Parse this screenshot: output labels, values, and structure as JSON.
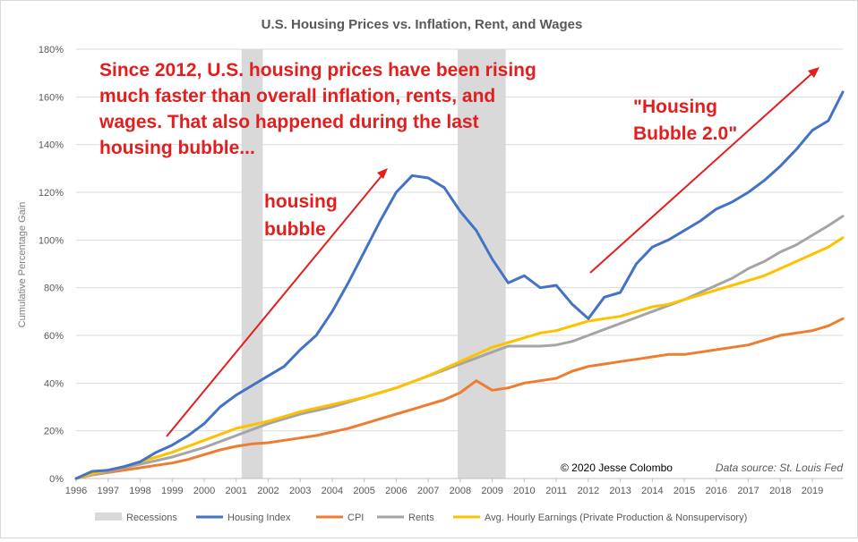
{
  "chart_data": {
    "type": "line",
    "title": "U.S. Housing Prices vs. Inflation, Rent, and Wages",
    "ylabel": "Cumulative Percentage Gain",
    "xlabel": "",
    "xlim": [
      1996,
      2019.95
    ],
    "ylim": [
      0,
      180
    ],
    "y_ticks": [
      "0%",
      "20%",
      "40%",
      "60%",
      "80%",
      "100%",
      "120%",
      "140%",
      "160%",
      "180%"
    ],
    "x_ticks": [
      "1996",
      "1997",
      "1998",
      "1999",
      "2000",
      "2001",
      "2002",
      "2003",
      "2004",
      "2005",
      "2006",
      "2007",
      "2008",
      "2009",
      "2010",
      "2011",
      "2012",
      "2013",
      "2014",
      "2015",
      "2016",
      "2017",
      "2018",
      "2019"
    ],
    "grid": "horizontal",
    "legend_position": "bottom",
    "recessions": [
      [
        2001.17,
        2001.83
      ],
      [
        2007.92,
        2009.42
      ]
    ],
    "legend": {
      "recessions": "Recessions",
      "housing": "Housing Index",
      "cpi": "CPI",
      "rents": "Rents",
      "wages": "Avg. Hourly Earnings (Private Production & Nonsupervisory)"
    },
    "colors": {
      "housing": "#4472c4",
      "cpi": "#ed7d31",
      "rents": "#a5a5a5",
      "wages": "#ffc000",
      "recession": "#d9d9d9",
      "annotation": "#e31e1e"
    },
    "series": [
      {
        "name": "Housing Index",
        "key": "housing",
        "x": [
          1996,
          1996.5,
          1997,
          1997.5,
          1998,
          1998.5,
          1999,
          1999.5,
          2000,
          2000.5,
          2001,
          2001.5,
          2002,
          2002.5,
          2003,
          2003.5,
          2004,
          2004.5,
          2005,
          2005.5,
          2006,
          2006.5,
          2007,
          2007.5,
          2008,
          2008.5,
          2009,
          2009.5,
          2010,
          2010.5,
          2011,
          2011.5,
          2012,
          2012.5,
          2013,
          2013.5,
          2014,
          2014.5,
          2015,
          2015.5,
          2016,
          2016.5,
          2017,
          2017.5,
          2018,
          2018.5,
          2019,
          2019.5,
          2019.95
        ],
        "y": [
          0,
          3,
          3.5,
          5,
          7,
          11,
          14,
          18,
          23,
          30,
          35,
          39,
          43,
          47,
          54,
          60,
          70,
          82,
          95,
          108,
          120,
          127,
          126,
          122,
          112,
          104,
          92,
          82,
          85,
          80,
          81,
          73,
          67,
          76,
          78,
          90,
          97,
          100,
          104,
          108,
          113,
          116,
          120,
          125,
          131,
          138,
          146,
          150,
          162
        ]
      },
      {
        "name": "CPI",
        "key": "cpi",
        "x": [
          1996,
          1996.5,
          1997,
          1997.5,
          1998,
          1998.5,
          1999,
          1999.5,
          2000,
          2000.5,
          2001,
          2001.5,
          2002,
          2002.5,
          2003,
          2003.5,
          2004,
          2004.5,
          2005,
          2005.5,
          2006,
          2006.5,
          2007,
          2007.5,
          2008,
          2008.5,
          2009,
          2009.5,
          2010,
          2010.5,
          2011,
          2011.5,
          2012,
          2012.5,
          2013,
          2013.5,
          2014,
          2014.5,
          2015,
          2015.5,
          2016,
          2016.5,
          2017,
          2017.5,
          2018,
          2018.5,
          2019,
          2019.5,
          2019.95
        ],
        "y": [
          0,
          1.5,
          2.5,
          3.5,
          4.5,
          5.5,
          6.5,
          8,
          10,
          12,
          13.5,
          14.5,
          15,
          16,
          17,
          18,
          19.5,
          21,
          23,
          25,
          27,
          29,
          31,
          33,
          36,
          41,
          37,
          38,
          40,
          41,
          42,
          45,
          47,
          48,
          49,
          50,
          51,
          52,
          52,
          53,
          54,
          55,
          56,
          58,
          60,
          61,
          62,
          64,
          67
        ]
      },
      {
        "name": "Rents",
        "key": "rents",
        "x": [
          1996,
          1996.5,
          1997,
          1997.5,
          1998,
          1998.5,
          1999,
          1999.5,
          2000,
          2000.5,
          2001,
          2001.5,
          2002,
          2002.5,
          2003,
          2003.5,
          2004,
          2004.5,
          2005,
          2005.5,
          2006,
          2006.5,
          2007,
          2007.5,
          2008,
          2008.5,
          2009,
          2009.5,
          2010,
          2010.5,
          2011,
          2011.5,
          2012,
          2012.5,
          2013,
          2013.5,
          2014,
          2014.5,
          2015,
          2015.5,
          2016,
          2016.5,
          2017,
          2017.5,
          2018,
          2018.5,
          2019,
          2019.5,
          2019.95
        ],
        "y": [
          0,
          1.5,
          3,
          4.5,
          6,
          7.5,
          9,
          11,
          13,
          15.5,
          18,
          20.5,
          23,
          25,
          27,
          28.5,
          30,
          32,
          34,
          36,
          38,
          40.5,
          43,
          45.5,
          48,
          50.5,
          53,
          55.5,
          55.5,
          55.5,
          56,
          57.5,
          60,
          62.5,
          65,
          67.5,
          70,
          72.5,
          75,
          78,
          81,
          84,
          88,
          91,
          95,
          98,
          102,
          106,
          110
        ]
      },
      {
        "name": "Avg. Hourly Earnings (Private Production & Nonsupervisory)",
        "key": "wages",
        "x": [
          1996,
          1996.5,
          1997,
          1997.5,
          1998,
          1998.5,
          1999,
          1999.5,
          2000,
          2000.5,
          2001,
          2001.5,
          2002,
          2002.5,
          2003,
          2003.5,
          2004,
          2004.5,
          2005,
          2005.5,
          2006,
          2006.5,
          2007,
          2007.5,
          2008,
          2008.5,
          2009,
          2009.5,
          2010,
          2010.5,
          2011,
          2011.5,
          2012,
          2012.5,
          2013,
          2013.5,
          2014,
          2014.5,
          2015,
          2015.5,
          2016,
          2016.5,
          2017,
          2017.5,
          2018,
          2018.5,
          2019,
          2019.5,
          2019.95
        ],
        "y": [
          0,
          2,
          3.5,
          5,
          7,
          9,
          11,
          13.5,
          16,
          18.5,
          21,
          22.5,
          24,
          26,
          28,
          29.5,
          31,
          32.5,
          34,
          36,
          38,
          40.5,
          43,
          46,
          49,
          52,
          55,
          57,
          59,
          61,
          62,
          64,
          66,
          67,
          68,
          70,
          72,
          73,
          75,
          77,
          79,
          81,
          83,
          85,
          88,
          91,
          94,
          97,
          101
        ]
      }
    ],
    "annotations": {
      "main": "Since 2012, U.S. housing prices have been rising much faster than overall inflation, rents, and wages. That also happened during the last housing bubble...",
      "main_lines": [
        "Since 2012, U.S. housing prices have been rising",
        "much faster than overall inflation, rents, and",
        "wages. That also happened during the last",
        "housing bubble..."
      ],
      "bubble_lines": [
        "housing",
        "bubble"
      ],
      "bubble2_lines": [
        "\"Housing",
        "Bubble 2.0\""
      ],
      "copyright": "© 2020 Jesse Colombo",
      "source": "Data source: St. Louis Fed"
    }
  }
}
